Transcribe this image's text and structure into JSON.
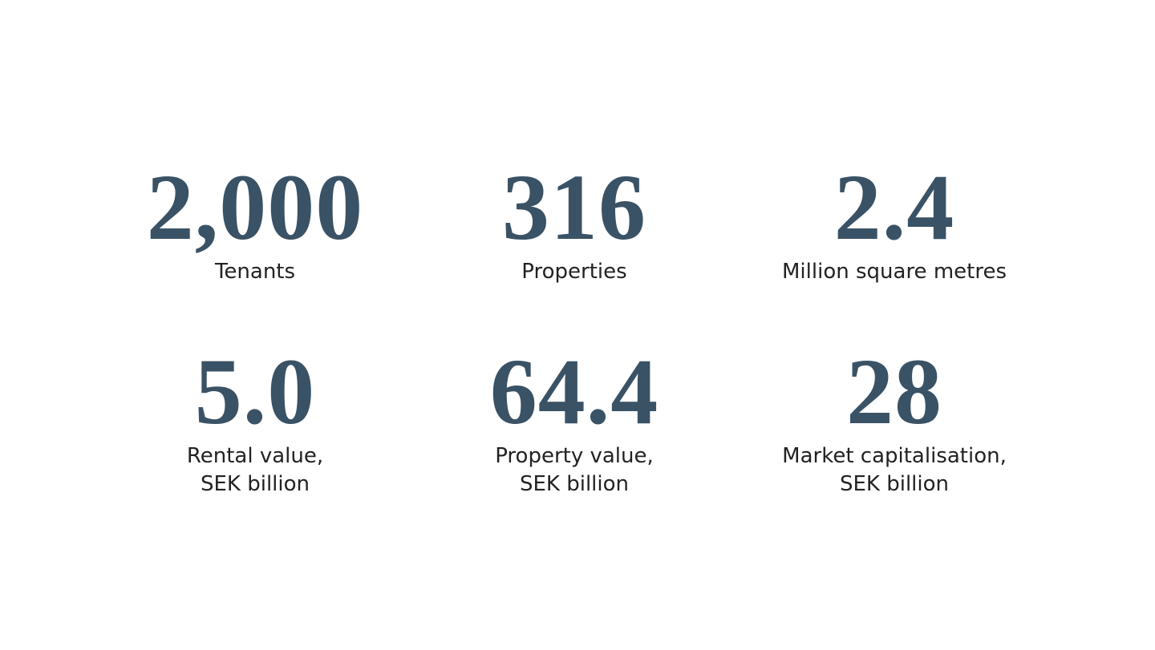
{
  "stats": [
    {
      "value": "2,000",
      "label": [
        "Tenants"
      ]
    },
    {
      "value": "316",
      "label": [
        "Properties"
      ]
    },
    {
      "value": "2.4",
      "label": [
        "Million square metres"
      ]
    },
    {
      "value": "5.0",
      "label": [
        "Rental value,",
        "SEK billion"
      ]
    },
    {
      "value": "64.4",
      "label": [
        "Property value,",
        "SEK billion"
      ]
    },
    {
      "value": "28",
      "label": [
        "Market capitalisation,",
        "SEK billion"
      ]
    }
  ]
}
